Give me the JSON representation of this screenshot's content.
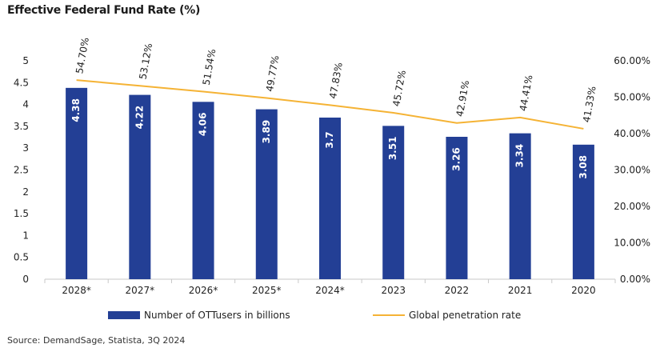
{
  "chart_data": {
    "type": "bar",
    "title": "Effective Federal Fund Rate (%)",
    "source": "Source: DemandSage, Statista, 3Q 2024",
    "categories": [
      "2028*",
      "2027*",
      "2026*",
      "2025*",
      "2024*",
      "2023",
      "2022",
      "2021",
      "2020"
    ],
    "series": [
      {
        "name": "Number of OTTusers in billions",
        "type": "bar",
        "axis": "left",
        "values": [
          4.38,
          4.22,
          4.06,
          3.89,
          3.7,
          3.51,
          3.26,
          3.34,
          3.08
        ],
        "labels": [
          "4.38",
          "4.22",
          "4.06",
          "3.89",
          "3.7",
          "3.51",
          "3.26",
          "3.34",
          "3.08"
        ],
        "color": "#233f95"
      },
      {
        "name": "Global penetration rate",
        "type": "line",
        "axis": "right",
        "values": [
          54.7,
          53.12,
          51.54,
          49.77,
          47.83,
          45.72,
          42.91,
          44.41,
          41.33
        ],
        "labels": [
          "54.70%",
          "53.12%",
          "51.54%",
          "49.77%",
          "47.83%",
          "45.72%",
          "42.91%",
          "44.41%",
          "41.33%"
        ],
        "color": "#f5b335"
      }
    ],
    "left_axis": {
      "min": 0,
      "max": 5,
      "ticks": [
        "0",
        "0.5",
        "1",
        "1.5",
        "2",
        "2.5",
        "3",
        "3.5",
        "4",
        "4.5",
        "5"
      ]
    },
    "right_axis": {
      "min": 0,
      "max": 60,
      "ticks": [
        "0.00%",
        "10.00%",
        "20.00%",
        "30.00%",
        "40.00%",
        "50.00%",
        "60.00%"
      ]
    },
    "grid": false,
    "legend": "bottom"
  }
}
